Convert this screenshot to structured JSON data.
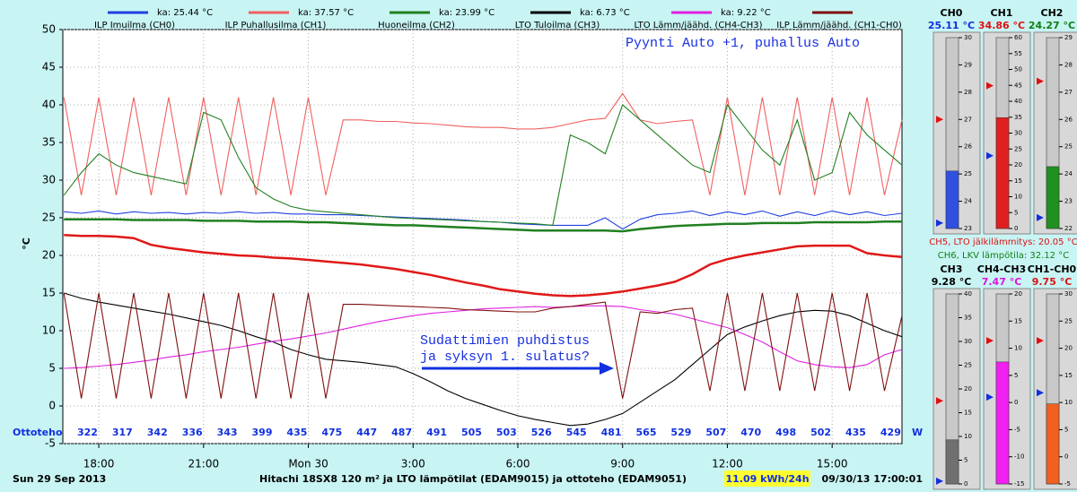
{
  "chart_data": {
    "type": "line",
    "title": "Hitachi 18SX8 120 m² ja LTO lämpötilat (EDAM9015) ja ottoteho (EDAM9051)",
    "date_label": "Sun 29 Sep 2013",
    "timestamp": "09/30/13 17:00:01",
    "energy_label": "11.09 kWh/24h",
    "y_label": "°C",
    "x": [
      17,
      17.5,
      18,
      18.5,
      19,
      19.5,
      20,
      20.5,
      21,
      21.5,
      22,
      22.5,
      23,
      23.5,
      24,
      24.5,
      25,
      25.5,
      26,
      26.5,
      27,
      27.5,
      28,
      28.5,
      29,
      29.5,
      30,
      30.5,
      31,
      31.5,
      32,
      32.5,
      33,
      33.5,
      34,
      34.5,
      35,
      35.5,
      36,
      36.5,
      37,
      37.5,
      38,
      38.5,
      39,
      39.5,
      40,
      40.5,
      41
    ],
    "xlim": [
      16.97,
      41.0
    ],
    "xticks": [
      {
        "value": 18,
        "label": "18:00"
      },
      {
        "value": 21,
        "label": "21:00"
      },
      {
        "value": 24,
        "label": "Mon 30"
      },
      {
        "value": 27,
        "label": "3:00"
      },
      {
        "value": 30,
        "label": "6:00"
      },
      {
        "value": 33,
        "label": "9:00"
      },
      {
        "value": 36,
        "label": "12:00"
      },
      {
        "value": 39,
        "label": "15:00"
      }
    ],
    "ylim": [
      -5,
      50
    ],
    "yticks": [
      -5,
      0,
      5,
      10,
      15,
      20,
      25,
      30,
      35,
      40,
      45,
      50
    ],
    "grid": true,
    "series": [
      {
        "name": "ILP Imuilma (CH0)",
        "color": "#2040e0",
        "legend_note": "ka: 25.44 °C",
        "values": [
          25.8,
          25.6,
          25.9,
          25.5,
          25.8,
          25.6,
          25.7,
          25.5,
          25.7,
          25.6,
          25.8,
          25.6,
          25.7,
          25.5,
          25.5,
          25.4,
          25.4,
          25.3,
          25.2,
          25.1,
          25.0,
          24.9,
          24.8,
          24.7,
          24.5,
          24.4,
          24.2,
          24.1,
          24.0,
          24.0,
          24.0,
          25.0,
          23.5,
          24.8,
          25.4,
          25.6,
          25.9,
          25.3,
          25.8,
          25.4,
          25.9,
          25.2,
          25.8,
          25.3,
          25.9,
          25.4,
          25.8,
          25.3,
          25.6
        ]
      },
      {
        "name": "ILP Puhallusilma (CH1)",
        "color": "#f06060",
        "legend_note": "ka: 37.57 °C",
        "values": [
          41,
          28,
          41,
          28,
          41,
          28,
          41,
          28,
          41,
          28,
          41,
          28,
          41,
          28,
          41,
          28,
          38,
          38,
          37.8,
          37.8,
          37.6,
          37.5,
          37.3,
          37.1,
          37.0,
          37.0,
          36.8,
          36.8,
          37.0,
          37.5,
          38.0,
          38.2,
          41.5,
          38,
          37.5,
          37.8,
          38,
          28,
          41,
          28,
          41,
          28,
          41,
          28,
          41,
          28,
          41,
          28,
          38
        ]
      },
      {
        "name": "Huoneilma (CH2)",
        "color": "#208020",
        "legend_note": "ka: 23.99 °C",
        "values": [
          28,
          31,
          33.5,
          32,
          31,
          30.5,
          30,
          29.5,
          39,
          38,
          33,
          29,
          27.5,
          26.5,
          26,
          25.8,
          25.6,
          25.4,
          25.2,
          25,
          24.9,
          24.8,
          24.7,
          24.6,
          24.5,
          24.4,
          24.3,
          24.2,
          24,
          36,
          35,
          33.5,
          40,
          38,
          36,
          34,
          32,
          31,
          40,
          37,
          34,
          32,
          38,
          30,
          31,
          39,
          36,
          34,
          32
        ]
      },
      {
        "name": "LTO Tuloilma (CH3)",
        "color": "#000000",
        "legend_note": "ka: 6.73 °C",
        "values": [
          15,
          14.3,
          13.8,
          13.4,
          13,
          12.6,
          12.2,
          11.7,
          11.2,
          10.7,
          10,
          9.2,
          8.5,
          7.5,
          6.8,
          6.2,
          6,
          5.8,
          5.5,
          5.2,
          4.3,
          3.2,
          2,
          1,
          0.2,
          -0.6,
          -1.3,
          -1.8,
          -2.2,
          -2.6,
          -2.4,
          -1.8,
          -1,
          0.5,
          2,
          3.5,
          5.5,
          7.5,
          9.5,
          10.5,
          11.3,
          12,
          12.5,
          12.7,
          12.6,
          12,
          11,
          10,
          9.2
        ]
      },
      {
        "name": "LTO Lämm/jäähd. (CH4-CH3)",
        "color": "#e020e0",
        "legend_note": "ka: 9.22 °C",
        "values": [
          5,
          5.1,
          5.3,
          5.5,
          5.8,
          6.1,
          6.5,
          6.8,
          7.2,
          7.5,
          7.8,
          8.2,
          8.6,
          8.9,
          9.3,
          9.7,
          10.2,
          10.7,
          11.2,
          11.6,
          12,
          12.3,
          12.5,
          12.7,
          12.9,
          13,
          13.1,
          13.2,
          13.1,
          13.2,
          13.3,
          13.3,
          13.2,
          12.8,
          12.5,
          12.2,
          11.6,
          11,
          10.4,
          9.5,
          8.5,
          7.2,
          6,
          5.5,
          5.2,
          5.1,
          5.5,
          6.8,
          7.5
        ]
      },
      {
        "name": "ILP Lämm/jäähd. (CH1-CH0)",
        "color": "#801010",
        "legend_note": "",
        "values": [
          15,
          1,
          15,
          1,
          15,
          1,
          15,
          1,
          15,
          1,
          15,
          1,
          15,
          1,
          15,
          1,
          13.5,
          13.5,
          13.4,
          13.3,
          13.2,
          13.1,
          13,
          12.8,
          12.7,
          12.6,
          12.5,
          12.5,
          13,
          13.2,
          13.5,
          13.8,
          1,
          12.5,
          12.3,
          12.8,
          13,
          2,
          15,
          2,
          15,
          2,
          15,
          2,
          15,
          2,
          15,
          2,
          12
        ]
      }
    ],
    "extra_series": [
      {
        "color": "#e01818",
        "values": [
          22.7,
          22.6,
          22.6,
          22.5,
          22.3,
          21.4,
          21,
          20.7,
          20.4,
          20.2,
          20,
          19.9,
          19.7,
          19.6,
          19.4,
          19.2,
          19,
          18.8,
          18.5,
          18.2,
          17.8,
          17.4,
          16.9,
          16.4,
          16,
          15.5,
          15.2,
          14.9,
          14.7,
          14.6,
          14.7,
          14.9,
          15.2,
          15.6,
          16,
          16.5,
          17.5,
          18.8,
          19.5,
          20,
          20.4,
          20.8,
          21.2,
          21.3,
          21.3,
          21.3,
          20.3,
          20,
          19.8
        ]
      },
      {
        "color": "#208020",
        "values": [
          24.8,
          24.8,
          24.8,
          24.8,
          24.7,
          24.7,
          24.7,
          24.7,
          24.6,
          24.6,
          24.6,
          24.5,
          24.5,
          24.5,
          24.4,
          24.4,
          24.3,
          24.2,
          24.1,
          24,
          24,
          23.9,
          23.8,
          23.7,
          23.6,
          23.5,
          23.4,
          23.3,
          23.3,
          23.3,
          23.3,
          23.3,
          23.2,
          23.5,
          23.7,
          23.9,
          24.0,
          24.1,
          24.2,
          24.2,
          24.3,
          24.3,
          24.3,
          24.4,
          24.4,
          24.4,
          24.4,
          24.5,
          24.5
        ]
      }
    ],
    "annotations": [
      "Pyynti Auto +1, puhallus Auto",
      "Sudattimien puhdistus",
      "ja syksyn 1. sulatus?"
    ],
    "power": {
      "label": "Ottoteho",
      "unit": "W",
      "values": [
        322,
        317,
        342,
        336,
        343,
        399,
        435,
        475,
        447,
        487,
        491,
        505,
        503,
        526,
        545,
        481,
        565,
        529,
        507,
        470,
        498,
        502,
        435,
        429
      ]
    }
  },
  "gauges": [
    {
      "name": "CH0",
      "value": 25.11,
      "value_label": "25.11 °C",
      "color": "#3050e0",
      "text_color": "#1030e0",
      "ylim": [
        23,
        30
      ],
      "yticks": [
        23,
        24,
        25,
        26,
        27,
        28,
        29,
        30
      ],
      "max_marker": 27.0,
      "min_marker": 23.2
    },
    {
      "name": "CH1",
      "value": 34.86,
      "value_label": "34.86 °C",
      "color": "#e02020",
      "text_color": "#e01010",
      "ylim": [
        0,
        60
      ],
      "yticks": [
        0,
        5,
        10,
        15,
        20,
        25,
        30,
        35,
        40,
        45,
        50,
        55,
        60
      ],
      "max_marker": 44.9,
      "min_marker": 22.9
    },
    {
      "name": "CH2",
      "value": 24.27,
      "value_label": "24.27 °C",
      "color": "#209020",
      "text_color": "#108010",
      "ylim": [
        22,
        29
      ],
      "yticks": [
        22,
        23,
        24,
        25,
        26,
        27,
        28,
        29
      ],
      "max_marker": 27.4,
      "min_marker": 22.4
    },
    {
      "name": "CH3",
      "value": 9.28,
      "value_label": "9.28 °C",
      "color": "#707070",
      "text_color": "#000000",
      "ylim": [
        0,
        40
      ],
      "yticks": [
        0,
        5,
        10,
        15,
        20,
        25,
        30,
        35,
        40
      ],
      "max_marker": 17.5,
      "min_marker": 0.6
    },
    {
      "name": "CH4-CH3",
      "value": 7.47,
      "value_label": "7.47 °C",
      "color": "#f020f0",
      "text_color": "#e010e0",
      "ylim": [
        -15,
        20
      ],
      "yticks": [
        -15,
        -10,
        -5,
        0,
        5,
        10,
        15,
        20
      ],
      "max_marker": 11.4,
      "min_marker": 1
    },
    {
      "name": "CH1-CH0",
      "value": 9.75,
      "value_label": "9.75 °C",
      "color": "#f06020",
      "text_color": "#e01010",
      "ylim": [
        -5,
        30
      ],
      "yticks": [
        -5,
        0,
        5,
        10,
        15,
        20,
        25,
        30
      ],
      "max_marker": 21.4,
      "min_marker": 11.8
    }
  ],
  "readouts": [
    {
      "text": "CH5, LTO jälkilämmitys: 20.05 °C",
      "color": "#e01010"
    },
    {
      "text": "CH6, LKV lämpötila: 32.12 °C",
      "color": "#108010"
    }
  ]
}
